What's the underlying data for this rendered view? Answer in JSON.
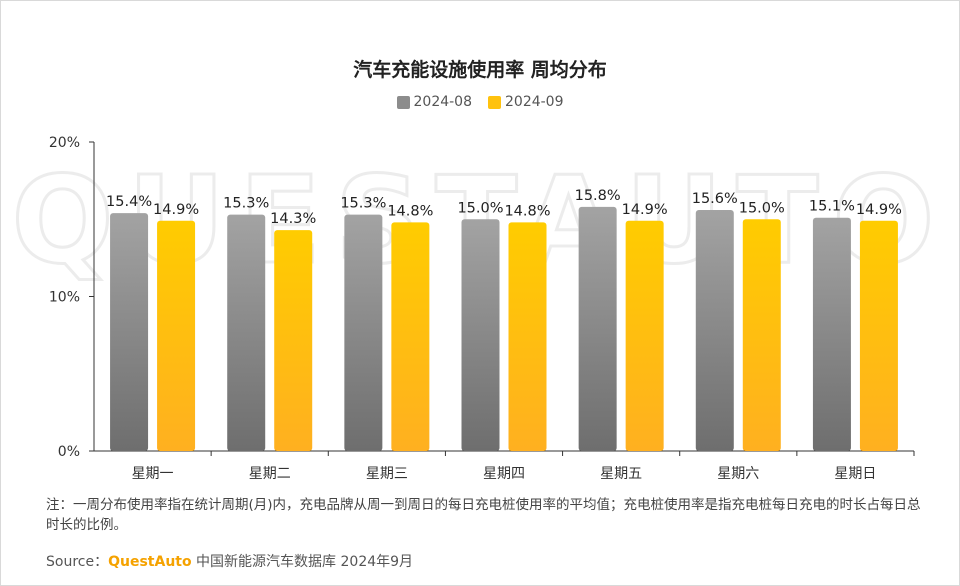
{
  "title": "汽车充能设施使用率 周均分布",
  "note": "注：一周分布使用率指在统计周期(月)内，充电品牌从周一到周日的每日充电桩使用率的平均值；充电桩使用率是指充电桩每日充电的时长占每日总时长的比例。",
  "source": {
    "label": "Source：",
    "brand": "QuestAuto",
    "text": " 中国新能源汽车数据库 2024年9月"
  },
  "watermark": "QUESTAUTO",
  "colors": {
    "series1": "#8c8c8c",
    "series2": "#ffc20e"
  },
  "chart_data": {
    "type": "bar",
    "title": "汽车充能设施使用率 周均分布",
    "categories": [
      "星期一",
      "星期二",
      "星期三",
      "星期四",
      "星期五",
      "星期六",
      "星期日"
    ],
    "series": [
      {
        "name": "2024-08",
        "values": [
          15.4,
          15.3,
          15.3,
          15.0,
          15.8,
          15.6,
          15.1
        ],
        "labels": [
          "15.4%",
          "15.3%",
          "15.3%",
          "15.0%",
          "15.8%",
          "15.6%",
          "15.1%"
        ]
      },
      {
        "name": "2024-09",
        "values": [
          14.9,
          14.3,
          14.8,
          14.8,
          14.9,
          15.0,
          14.9
        ],
        "labels": [
          "14.9%",
          "14.3%",
          "14.8%",
          "14.8%",
          "14.9%",
          "15.0%",
          "14.9%"
        ]
      }
    ],
    "ylim": [
      0,
      20
    ],
    "yticks": [
      0,
      10,
      20
    ],
    "ytick_labels": [
      "0%",
      "10%",
      "20%"
    ],
    "grid": false,
    "legend_position": "top-center"
  }
}
